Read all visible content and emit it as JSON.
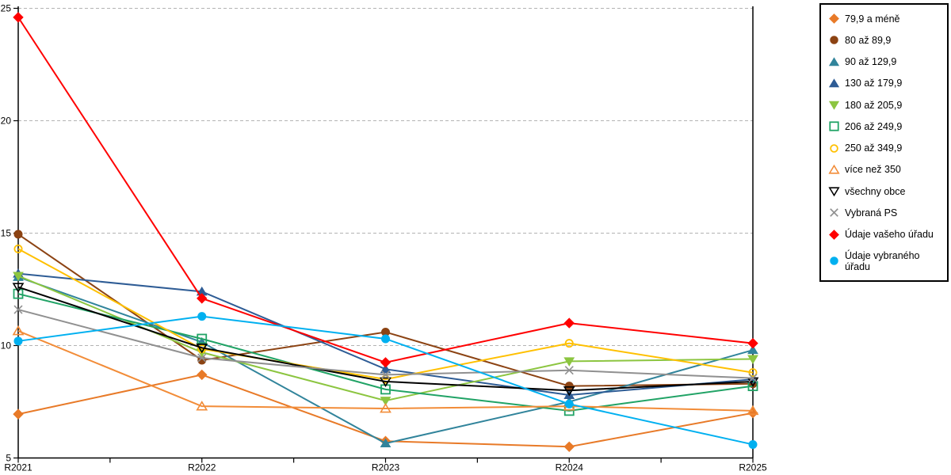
{
  "chart_data": {
    "type": "line",
    "title": "",
    "x_labels": [
      "R2021",
      "R2022",
      "R2023",
      "R2024",
      "R2025"
    ],
    "ylim": [
      5,
      25
    ],
    "yticks": [
      5,
      10,
      15,
      20,
      25
    ],
    "grid": "horizontal-dashed",
    "legend_position": "right-outside",
    "series": [
      {
        "name": "79,9 a méně",
        "marker": "diamond",
        "fill": "solid",
        "color": "#E87A28",
        "values": [
          6.95,
          8.7,
          5.75,
          5.5,
          7.0
        ]
      },
      {
        "name": "80 až 89,9",
        "marker": "circle",
        "fill": "solid",
        "color": "#8C4313",
        "values": [
          14.95,
          9.35,
          10.6,
          8.2,
          8.3
        ]
      },
      {
        "name": "90 až 129,9",
        "marker": "triangle-up",
        "fill": "solid",
        "color": "#31849B",
        "values": [
          13.05,
          10.15,
          5.65,
          7.5,
          9.8
        ]
      },
      {
        "name": "130 až 179,9",
        "marker": "triangle-up",
        "fill": "solid",
        "color": "#2E5C95",
        "values": [
          13.2,
          12.4,
          8.95,
          7.8,
          8.5
        ]
      },
      {
        "name": "180 až 205,9",
        "marker": "triangle-down",
        "fill": "solid",
        "color": "#8CC540",
        "values": [
          13.1,
          9.7,
          7.55,
          9.3,
          9.4
        ]
      },
      {
        "name": "206 až 249,9",
        "marker": "square",
        "fill": "open",
        "color": "#21A366",
        "values": [
          12.3,
          10.3,
          8.05,
          7.1,
          8.2
        ]
      },
      {
        "name": "250 až 349,9",
        "marker": "circle",
        "fill": "open",
        "color": "#FFC000",
        "values": [
          14.3,
          9.85,
          8.5,
          10.1,
          8.8
        ]
      },
      {
        "name": "více než 350",
        "marker": "triangle-up",
        "fill": "open",
        "color": "#F28C38",
        "values": [
          10.65,
          7.3,
          7.2,
          7.3,
          7.1
        ]
      },
      {
        "name": "všechny obce",
        "marker": "triangle-down",
        "fill": "open",
        "color": "#000000",
        "values": [
          12.6,
          9.9,
          8.4,
          8.0,
          8.4
        ]
      },
      {
        "name": "Vybraná PS",
        "marker": "x-cross",
        "fill": "open",
        "color": "#909090",
        "values": [
          11.6,
          9.45,
          8.7,
          8.9,
          8.55
        ]
      },
      {
        "name": "Údaje vašeho úřadu",
        "marker": "diamond",
        "fill": "solid",
        "color": "#FF0000",
        "values": [
          24.6,
          12.1,
          9.25,
          11.0,
          10.1
        ]
      },
      {
        "name": "Údaje vybraného úřadu",
        "marker": "circle",
        "fill": "solid",
        "color": "#00B0F0",
        "values": [
          10.2,
          11.3,
          10.3,
          7.4,
          5.6
        ]
      }
    ],
    "style": {
      "axis_color": "#000000",
      "gridline_color": "#B3B3B3",
      "background": "#FFFFFF"
    }
  }
}
